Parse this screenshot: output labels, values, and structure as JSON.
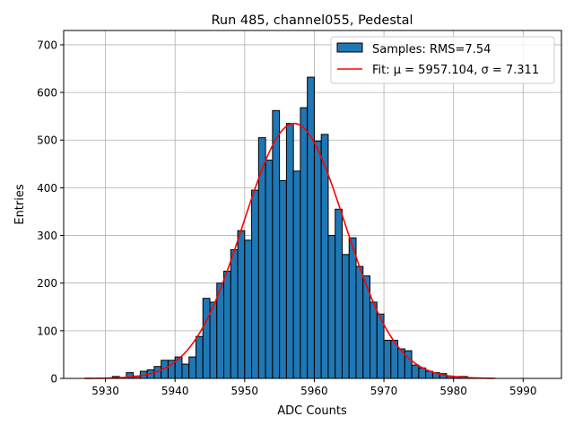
{
  "chart_data": {
    "type": "bar",
    "title": "Run 485, channel055, Pedestal",
    "xlabel": "ADC Counts",
    "ylabel": "Entries",
    "xlim": [
      5924,
      5995.5
    ],
    "ylim": [
      0,
      730
    ],
    "grid": true,
    "legend_position": "top-right",
    "xticks": [
      5930,
      5940,
      5950,
      5960,
      5970,
      5980,
      5990
    ],
    "yticks": [
      0,
      100,
      200,
      300,
      400,
      500,
      600,
      700
    ],
    "histogram": {
      "name": "Samples: RMS=7.54",
      "bin_width": 1,
      "bin_starts": [
        5930,
        5931,
        5932,
        5933,
        5934,
        5935,
        5936,
        5937,
        5938,
        5939,
        5940,
        5941,
        5942,
        5943,
        5944,
        5945,
        5946,
        5947,
        5948,
        5949,
        5950,
        5951,
        5952,
        5953,
        5954,
        5955,
        5956,
        5957,
        5958,
        5959,
        5960,
        5961,
        5962,
        5963,
        5964,
        5965,
        5966,
        5967,
        5968,
        5969,
        5970,
        5971,
        5972,
        5973,
        5974,
        5975,
        5976,
        5977,
        5978,
        5979,
        5980,
        5981,
        5982,
        5983
      ],
      "values": [
        1,
        4,
        2,
        12,
        5,
        15,
        18,
        25,
        38,
        38,
        45,
        30,
        45,
        88,
        168,
        160,
        200,
        225,
        270,
        310,
        290,
        395,
        505,
        458,
        562,
        415,
        535,
        435,
        568,
        632,
        498,
        512,
        300,
        355,
        260,
        295,
        235,
        215,
        160,
        135,
        80,
        80,
        62,
        58,
        28,
        22,
        15,
        12,
        10,
        5,
        4,
        4,
        1,
        1
      ],
      "color": "#1f77b4"
    },
    "fit": {
      "name_prefix": "Fit: ",
      "label": "Fit: μ = 5957.104, σ = 7.311",
      "mu": 5957.104,
      "sigma": 7.311,
      "amplitude": 535,
      "x_range": [
        5927,
        5986
      ],
      "color": "#ff0000"
    }
  }
}
